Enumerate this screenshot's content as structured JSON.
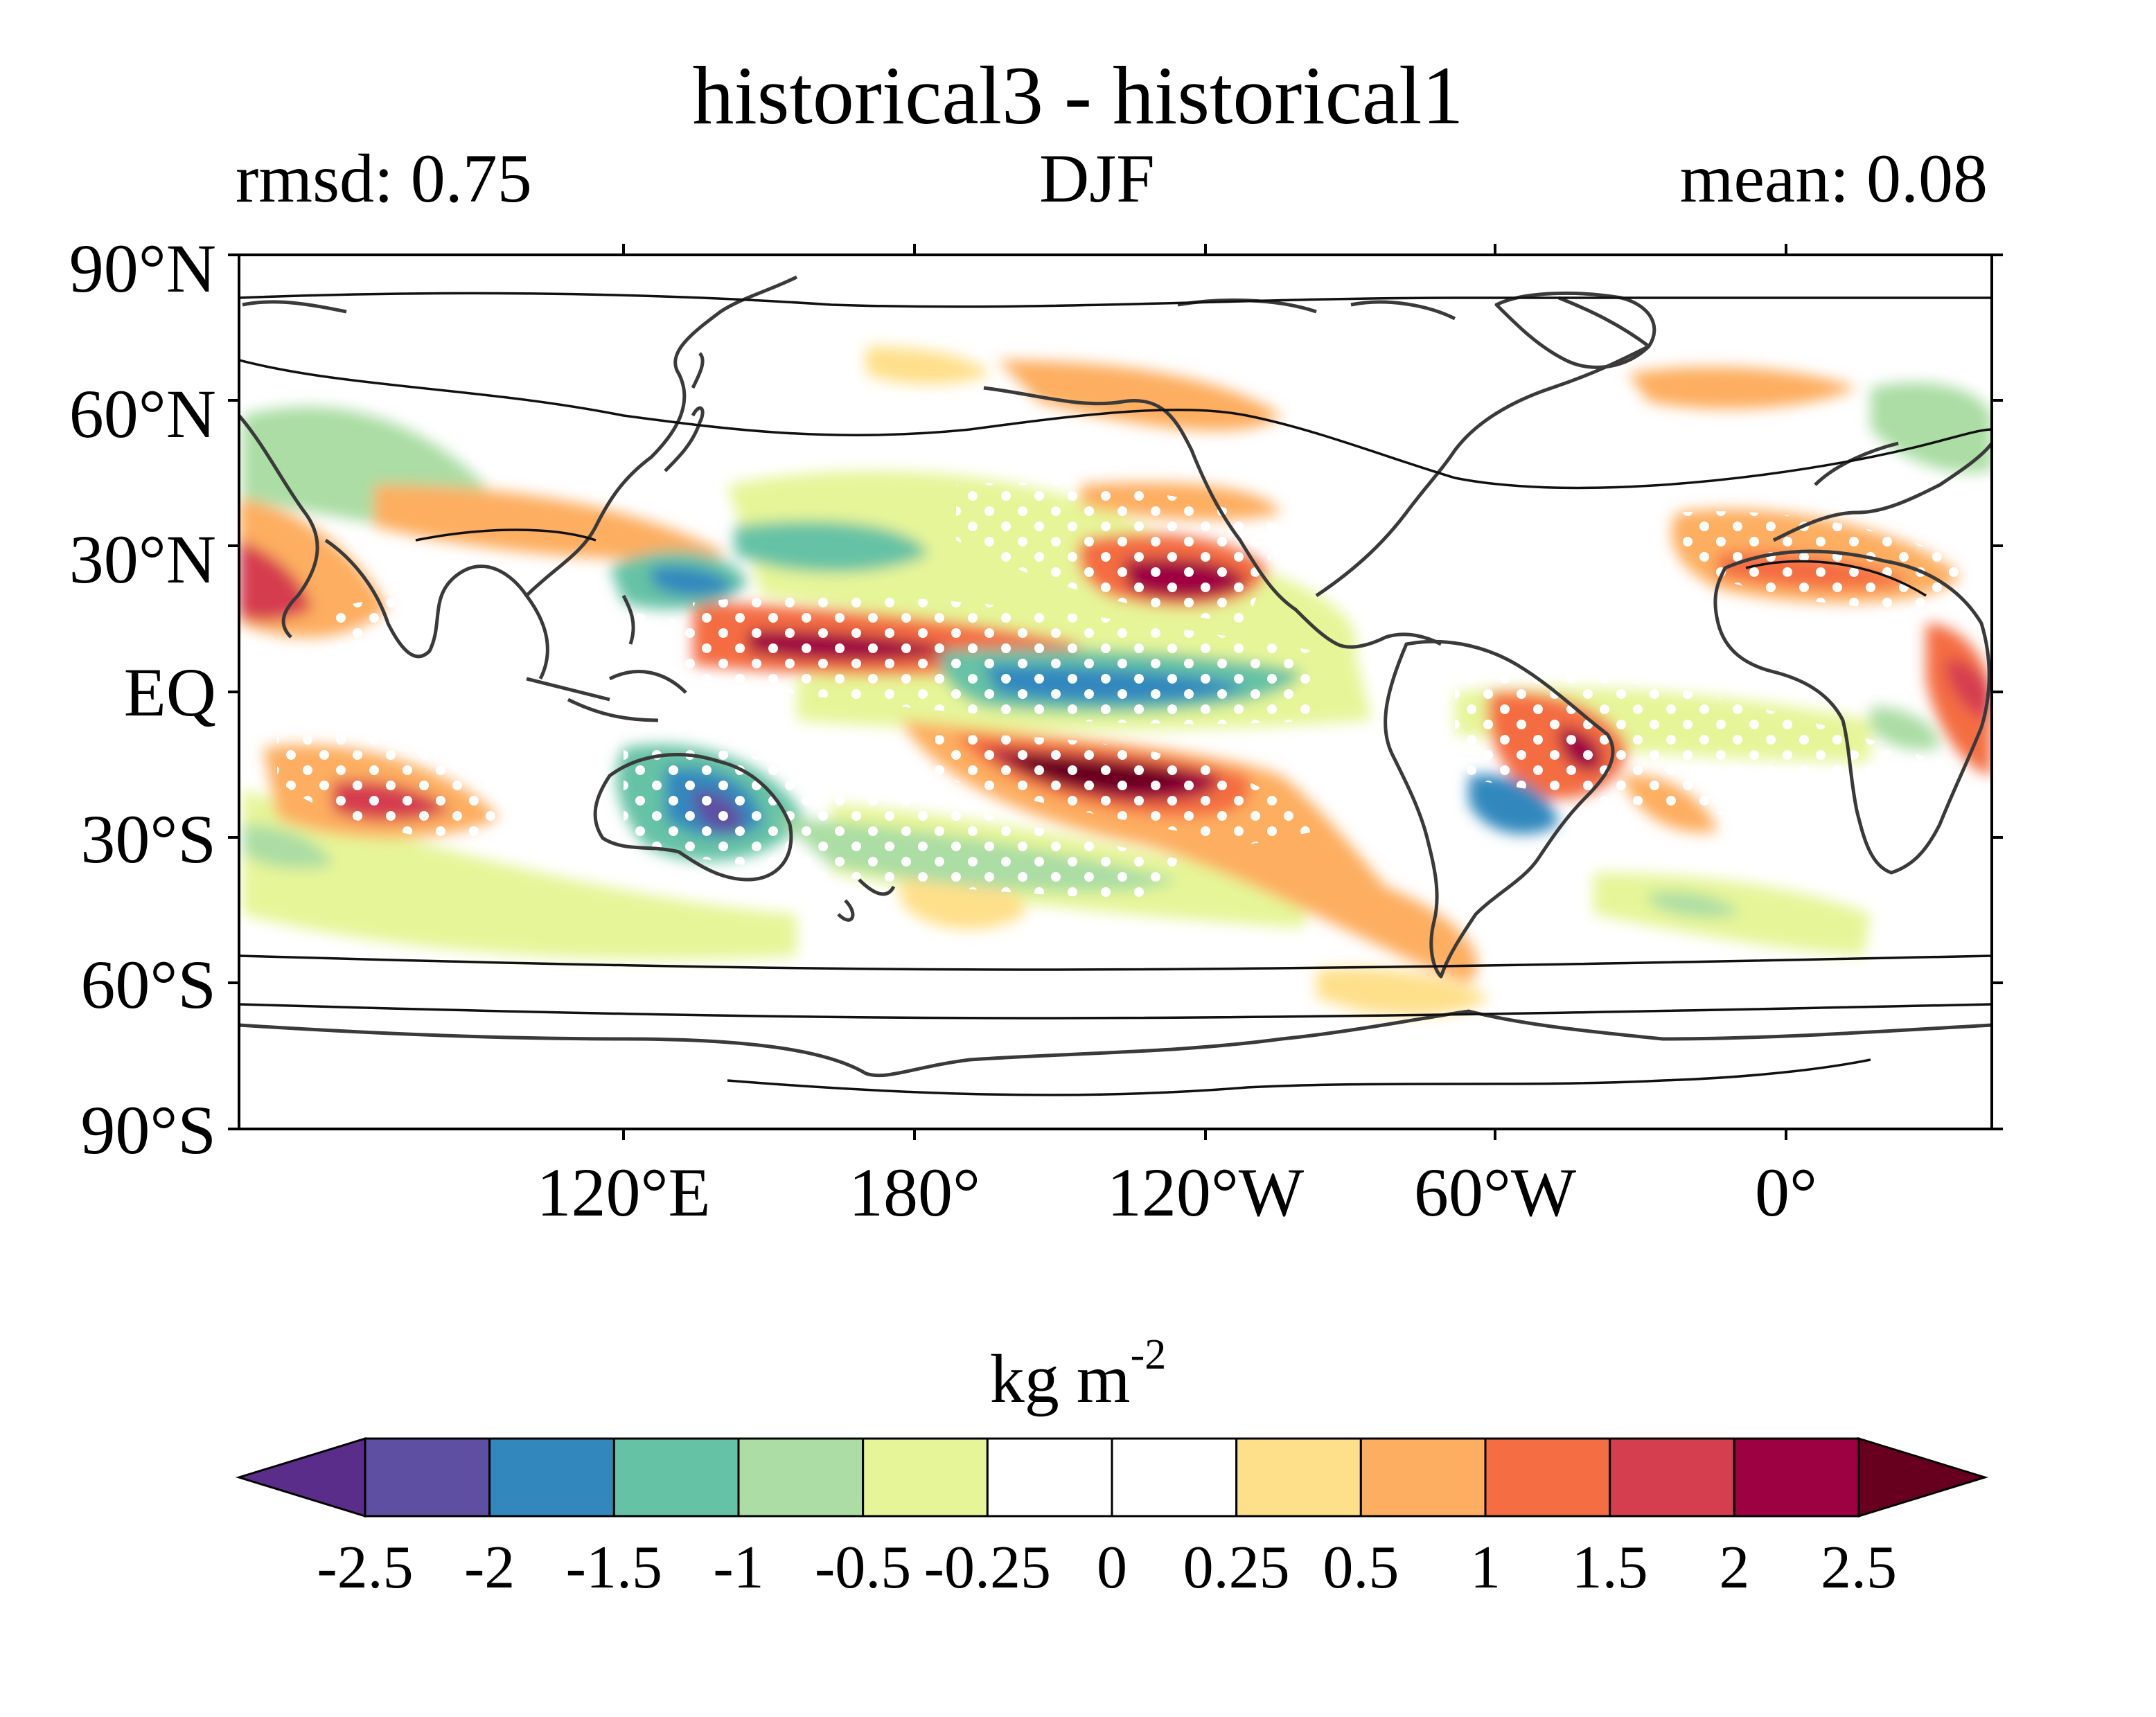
{
  "title": "historical3 - historical1",
  "rmsd_label": "rmsd: 0.75",
  "season": "DJF",
  "mean_label": "mean: 0.08",
  "lat_labels": [
    "90°N",
    "60°N",
    "30°N",
    "EQ",
    "30°S",
    "60°S",
    "90°S"
  ],
  "lon_labels": [
    "120°E",
    "180°",
    "120°W",
    "60°W",
    "0°"
  ],
  "colorbar": {
    "units_base": "kg m",
    "units_exp": "-2",
    "tick_labels": [
      "-2.5",
      "-2",
      "-1.5",
      "-1",
      "-0.5",
      "-0.25",
      "0",
      "0.25",
      "0.5",
      "1",
      "1.5",
      "2",
      "2.5"
    ],
    "colors": [
      "#5b2d8a",
      "#5e4fa2",
      "#3288bd",
      "#66c2a5",
      "#abdda4",
      "#e6f598",
      "#ffffff",
      "#ffffff",
      "#fee08b",
      "#fdae61",
      "#f46d43",
      "#d53e4f",
      "#9e0142",
      "#67001f"
    ]
  }
}
